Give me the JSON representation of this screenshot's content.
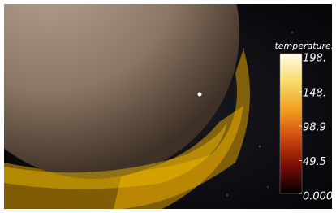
{
  "colorbar": {
    "title": "temperatures",
    "ticks": [
      {
        "value": 198,
        "label": "198."
      },
      {
        "value": 148,
        "label": "148."
      },
      98.9,
      49.5,
      {
        "value": 0,
        "label": "0.000"
      }
    ]
  }
}
